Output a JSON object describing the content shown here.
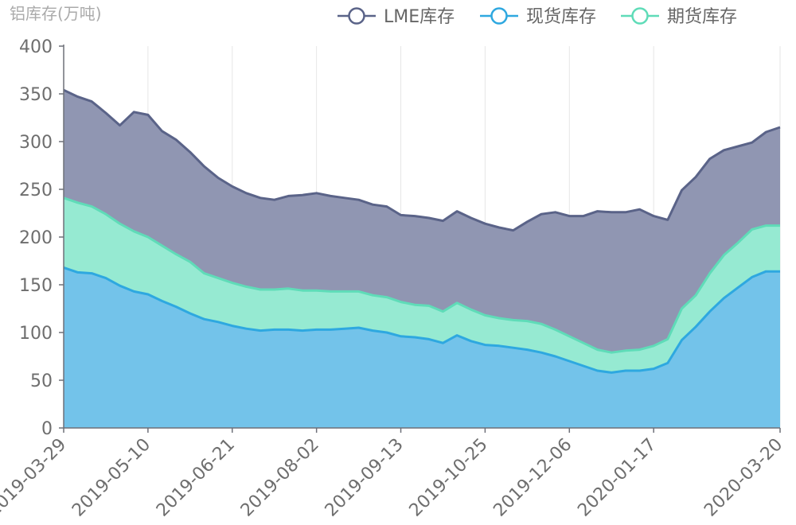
{
  "chart_data": {
    "type": "area",
    "stacked": true,
    "ylabel": "铝库存(万吨)",
    "ylim": [
      0,
      400
    ],
    "yticks": [
      0,
      50,
      100,
      150,
      200,
      250,
      300,
      350,
      400
    ],
    "xtick_labels": [
      "2019-03-29",
      "2019-05-10",
      "2019-06-21",
      "2019-08-02",
      "2019-09-13",
      "2019-10-25",
      "2019-12-06",
      "2020-01-17",
      "2020-03-20"
    ],
    "x": [
      "2019-03-29",
      "2019-04-05",
      "2019-04-12",
      "2019-04-19",
      "2019-04-26",
      "2019-05-03",
      "2019-05-10",
      "2019-05-17",
      "2019-05-24",
      "2019-05-31",
      "2019-06-07",
      "2019-06-14",
      "2019-06-21",
      "2019-06-28",
      "2019-07-05",
      "2019-07-12",
      "2019-07-19",
      "2019-07-26",
      "2019-08-02",
      "2019-08-09",
      "2019-08-16",
      "2019-08-23",
      "2019-08-30",
      "2019-09-06",
      "2019-09-13",
      "2019-09-20",
      "2019-09-27",
      "2019-10-04",
      "2019-10-11",
      "2019-10-18",
      "2019-10-25",
      "2019-11-01",
      "2019-11-08",
      "2019-11-15",
      "2019-11-22",
      "2019-11-29",
      "2019-12-06",
      "2019-12-13",
      "2019-12-20",
      "2019-12-27",
      "2020-01-03",
      "2020-01-10",
      "2020-01-17",
      "2020-01-24",
      "2020-01-31",
      "2020-02-07",
      "2020-02-14",
      "2020-02-21",
      "2020-02-28",
      "2020-03-06",
      "2020-03-13",
      "2020-03-20"
    ],
    "series": [
      {
        "name": "现货库存",
        "color": "#2ea8e0",
        "fill": "#73c3ea",
        "values": [
          168,
          163,
          162,
          157,
          149,
          143,
          140,
          133,
          127,
          120,
          114,
          111,
          107,
          104,
          102,
          103,
          103,
          102,
          103,
          103,
          104,
          105,
          102,
          100,
          96,
          95,
          93,
          89,
          97,
          91,
          87,
          86,
          84,
          82,
          79,
          75,
          70,
          65,
          60,
          58,
          60,
          60,
          62,
          68,
          92,
          106,
          122,
          136,
          147,
          158,
          164,
          164
        ]
      },
      {
        "name": "期货库存",
        "color": "#5fdcb8",
        "fill": "#96ead2",
        "values": [
          73,
          73,
          70,
          67,
          65,
          63,
          60,
          58,
          55,
          54,
          48,
          46,
          45,
          44,
          43,
          42,
          43,
          42,
          41,
          40,
          39,
          38,
          37,
          37,
          36,
          34,
          35,
          33,
          34,
          33,
          31,
          29,
          29,
          30,
          30,
          28,
          26,
          24,
          22,
          21,
          21,
          22,
          24,
          25,
          33,
          33,
          40,
          45,
          47,
          50,
          48,
          48
        ]
      },
      {
        "name": "LME库存",
        "color": "#5a6388",
        "fill": "#9096b2",
        "values": [
          113,
          111,
          110,
          106,
          103,
          125,
          128,
          120,
          120,
          115,
          112,
          105,
          101,
          98,
          96,
          94,
          97,
          100,
          102,
          100,
          98,
          96,
          95,
          95,
          91,
          93,
          92,
          95,
          96,
          96,
          96,
          95,
          94,
          104,
          115,
          123,
          126,
          133,
          145,
          147,
          145,
          147,
          136,
          125,
          124,
          124,
          120,
          110,
          101,
          91,
          98,
          103
        ]
      }
    ],
    "legend_order": [
      "LME库存",
      "现货库存",
      "期货库存"
    ],
    "legend_position": "top-right",
    "grid": "vertical"
  }
}
